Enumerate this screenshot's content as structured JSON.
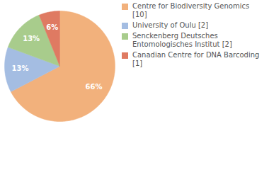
{
  "chart_data": {
    "type": "pie",
    "categories": [
      "Centre for Biodiversity Genomics [10]",
      "University of Oulu [2]",
      "Senckenberg Deutsches Entomologisches Institut [2]",
      "Canadian Centre for DNA Barcoding [1]"
    ],
    "values": [
      66,
      13,
      13,
      6
    ],
    "value_labels": [
      "66%",
      "13%",
      "13%",
      "6%"
    ],
    "colors": [
      "#f2b17c",
      "#a4bde2",
      "#a8cc8c",
      "#df7a62"
    ],
    "data_labels": true,
    "legend": "right"
  }
}
